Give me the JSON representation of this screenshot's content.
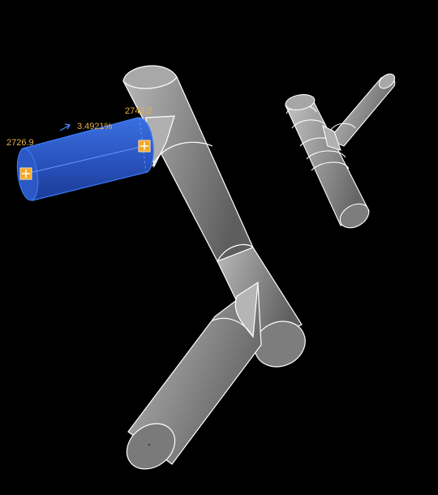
{
  "scene": {
    "background_color": "#000000",
    "pipe_color": "#9a9a9a",
    "pipe_edge_color": "#ffffff",
    "selected_color": "#2f5bc8",
    "selected_edge_color": "#3f7dff",
    "handle_color": "#f5a623",
    "label_color": "#e8b04a"
  },
  "selection": {
    "start_elevation": "2726.9",
    "slope": "3.4921%",
    "end_elevation": "2742.2"
  }
}
